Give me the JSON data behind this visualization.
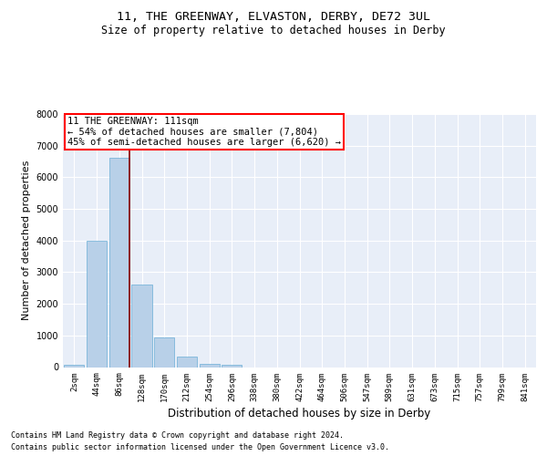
{
  "title1": "11, THE GREENWAY, ELVASTON, DERBY, DE72 3UL",
  "title2": "Size of property relative to detached houses in Derby",
  "xlabel": "Distribution of detached houses by size in Derby",
  "ylabel": "Number of detached properties",
  "footer1": "Contains HM Land Registry data © Crown copyright and database right 2024.",
  "footer2": "Contains public sector information licensed under the Open Government Licence v3.0.",
  "bar_categories": [
    "2sqm",
    "44sqm",
    "86sqm",
    "128sqm",
    "170sqm",
    "212sqm",
    "254sqm",
    "296sqm",
    "338sqm",
    "380sqm",
    "422sqm",
    "464sqm",
    "506sqm",
    "547sqm",
    "589sqm",
    "631sqm",
    "673sqm",
    "715sqm",
    "757sqm",
    "799sqm",
    "841sqm"
  ],
  "bar_values": [
    60,
    3980,
    6610,
    2620,
    940,
    330,
    110,
    60,
    0,
    0,
    0,
    0,
    0,
    0,
    0,
    0,
    0,
    0,
    0,
    0,
    0
  ],
  "bar_color": "#b8d0e8",
  "bar_edge_color": "#6aaed6",
  "property_line_label": "11 THE GREENWAY: 111sqm",
  "annotation_line1": "← 54% of detached houses are smaller (7,804)",
  "annotation_line2": "45% of semi-detached houses are larger (6,620) →",
  "ylim": [
    0,
    8000
  ],
  "yticks": [
    0,
    1000,
    2000,
    3000,
    4000,
    5000,
    6000,
    7000,
    8000
  ],
  "plot_bg_color": "#e8eef8",
  "grid_color": "white",
  "title1_fontsize": 9.5,
  "title2_fontsize": 8.5,
  "xlabel_fontsize": 8.5,
  "ylabel_fontsize": 8,
  "annot_fontsize": 7.5,
  "tick_fontsize": 6.5,
  "footer_fontsize": 6
}
